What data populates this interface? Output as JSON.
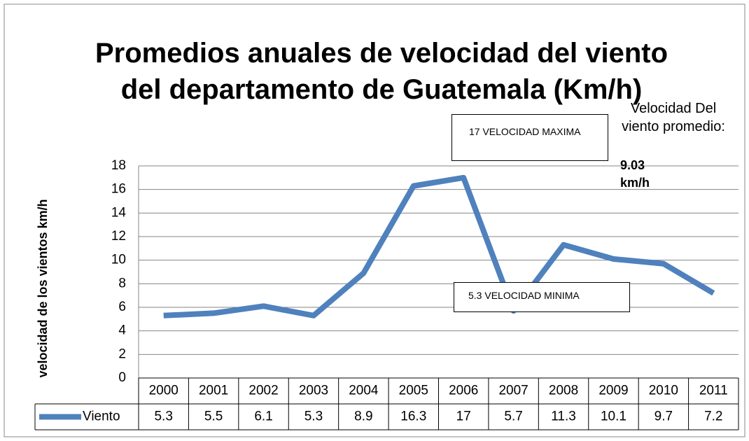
{
  "chart_data": {
    "type": "line",
    "title": "Promedios anuales de velocidad del viento del departamento de Guatemala (Km/h)",
    "y_label": "velocidad de los vientos  km/h",
    "categories": [
      "2000",
      "2001",
      "2002",
      "2003",
      "2004",
      "2005",
      "2006",
      "2007",
      "2008",
      "2009",
      "2010",
      "2011"
    ],
    "series": [
      {
        "name": "Viento",
        "color": "#4f81bd",
        "values": [
          5.3,
          5.5,
          6.1,
          5.3,
          8.9,
          16.3,
          17,
          5.7,
          11.3,
          10.1,
          9.7,
          7.2
        ]
      }
    ],
    "ylim": [
      0,
      18
    ],
    "yticks": [
      0,
      2,
      4,
      6,
      8,
      10,
      12,
      14,
      16,
      18
    ],
    "grid": true,
    "annotations": [
      "17 VELOCIDAD MAXIMA",
      "5.3 VELOCIDAD MINIMA",
      "Velocidad Del viento promedio:",
      "9.03 km/h"
    ]
  }
}
